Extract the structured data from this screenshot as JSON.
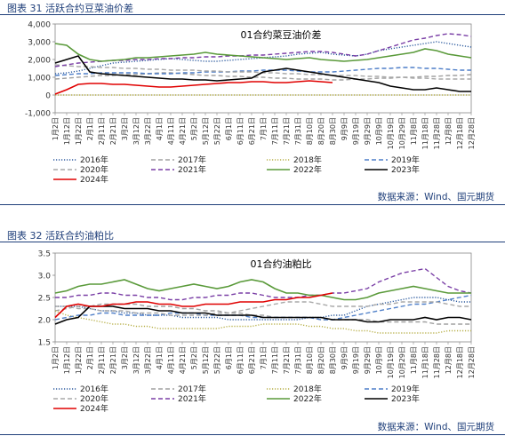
{
  "header1": "图表 31 活跃合约豆菜油价差",
  "header2": "图表 32 活跃合约油粕比",
  "source1": "数据来源：Wind、国元期货",
  "source2": "数据来源：Wind、国元期货",
  "legend_colors": {
    "2016年": "#2e5c9f",
    "2017年": "#a0a0a0",
    "2018年": "#b8b04a",
    "2019年": "#4f7fc8",
    "2020年": "#a8a8a8",
    "2021年": "#7a3fa6",
    "2022年": "#5a9a3a",
    "2023年": "#000000",
    "2024年": "#e00000"
  },
  "chart_data": [
    {
      "type": "line",
      "title": "01合约菜豆油价差",
      "x_ticks": [
        "1月2日",
        "1月12日",
        "1月22日",
        "2月1日",
        "2月11日",
        "2月21日",
        "3月2日",
        "3月12日",
        "3月22日",
        "4月1日",
        "4月11日",
        "4月21日",
        "5月2日",
        "5月12日",
        "5月22日",
        "6月1日",
        "6月11日",
        "6月21日",
        "7月1日",
        "7月11日",
        "7月21日",
        "7月31日",
        "8月10日",
        "8月20日",
        "8月30日",
        "9月9日",
        "9月19日",
        "9月29日",
        "10月9日",
        "10月19日",
        "10月29日",
        "11月8日",
        "11月18日",
        "11月28日",
        "12月8日",
        "12月18日",
        "12月28日"
      ],
      "y_ticks": [
        "-1,000",
        "0",
        "1,000",
        "2,000",
        "3,000",
        "4,000"
      ],
      "ylim": [
        -1000,
        4000
      ],
      "grid": false,
      "legend_position": "bottom",
      "series": [
        {
          "name": "2016年",
          "style": "dotted",
          "values": [
            1200,
            1250,
            1350,
            1500,
            1650,
            1800,
            1850,
            1900,
            1950,
            2000,
            2050,
            2000,
            1950,
            1900,
            1900,
            1950,
            2000,
            2050,
            2100,
            2150,
            2200,
            2300,
            2350,
            2400,
            2300,
            2250,
            2200,
            2300,
            2500,
            2600,
            2700,
            2800,
            2900,
            3000,
            2900,
            2800,
            2700
          ]
        },
        {
          "name": "2017年",
          "style": "dashed",
          "values": [
            900,
            950,
            1000,
            1050,
            1100,
            1100,
            1150,
            1150,
            1200,
            1250,
            1250,
            1200,
            1150,
            1100,
            1100,
            1050,
            1050,
            1000,
            1000,
            950,
            950,
            900,
            900,
            900,
            850,
            850,
            900,
            900,
            950,
            950,
            1000,
            1000,
            1050,
            1050,
            1100,
            1100,
            1150
          ]
        },
        {
          "name": "2018年",
          "style": "dotted",
          "values": [
            0,
            0,
            0,
            0,
            0,
            0,
            0,
            0,
            0,
            0,
            0,
            0,
            0,
            0,
            0,
            0,
            0,
            0,
            0,
            0,
            0,
            0,
            0,
            0,
            0,
            0,
            0,
            0,
            0,
            0,
            0,
            0,
            0,
            0,
            0,
            0,
            0
          ]
        },
        {
          "name": "2019年",
          "style": "dashed",
          "values": [
            1100,
            1150,
            1200,
            1200,
            1250,
            1250,
            1250,
            1250,
            1200,
            1200,
            1200,
            1250,
            1250,
            1300,
            1300,
            1300,
            1350,
            1350,
            1400,
            1400,
            1400,
            1350,
            1300,
            1300,
            1300,
            1350,
            1400,
            1450,
            1500,
            1500,
            1550,
            1550,
            1500,
            1500,
            1450,
            1400,
            1400
          ]
        },
        {
          "name": "2020年",
          "style": "dashed",
          "values": [
            1700,
            1650,
            1600,
            1600,
            1550,
            1550,
            1500,
            1500,
            1450,
            1450,
            1400,
            1400,
            1400,
            1350,
            1350,
            1300,
            1300,
            1300,
            1250,
            1250,
            1200,
            1200,
            1150,
            1150,
            1100,
            1100,
            1100,
            1050,
            1050,
            1000,
            1000,
            950,
            950,
            900,
            900,
            900,
            900
          ]
        },
        {
          "name": "2021年",
          "style": "dashed",
          "values": [
            1600,
            1700,
            1800,
            1850,
            1900,
            1950,
            1950,
            2000,
            2000,
            2050,
            2050,
            2100,
            2100,
            2150,
            2150,
            2200,
            2200,
            2250,
            2250,
            2300,
            2350,
            2400,
            2450,
            2450,
            2400,
            2300,
            2200,
            2300,
            2500,
            2700,
            2900,
            3100,
            3200,
            3350,
            3450,
            3400,
            3300
          ]
        },
        {
          "name": "2022年",
          "style": "solid",
          "values": [
            2900,
            2800,
            2300,
            2000,
            1900,
            1950,
            2000,
            2100,
            2100,
            2150,
            2200,
            2250,
            2300,
            2400,
            2300,
            2250,
            2200,
            2150,
            2100,
            2050,
            2000,
            2050,
            2100,
            2000,
            1950,
            1900,
            1950,
            2000,
            2100,
            2200,
            2300,
            2400,
            2600,
            2500,
            2300,
            2200,
            2100
          ]
        },
        {
          "name": "2023年",
          "style": "solid",
          "values": [
            1800,
            2000,
            2200,
            1300,
            1200,
            1150,
            1100,
            1050,
            1000,
            950,
            900,
            900,
            850,
            850,
            800,
            850,
            900,
            950,
            1300,
            1400,
            1500,
            1400,
            1300,
            1200,
            1100,
            1000,
            900,
            800,
            700,
            500,
            400,
            300,
            300,
            400,
            300,
            200,
            200
          ]
        },
        {
          "name": "2024年",
          "style": "solid",
          "values": [
            50,
            300,
            600,
            650,
            650,
            600,
            600,
            550,
            500,
            450,
            450,
            500,
            550,
            600,
            650,
            700,
            700,
            750,
            750,
            700,
            700,
            750,
            800,
            750,
            700,
            null,
            null,
            null,
            null,
            null,
            null,
            null,
            null,
            null,
            null,
            null,
            null
          ]
        }
      ]
    },
    {
      "type": "line",
      "title": "01合约油粕比",
      "x_ticks": [
        "1月2日",
        "1月12日",
        "1月22日",
        "2月1日",
        "2月11日",
        "2月21日",
        "3月2日",
        "3月12日",
        "3月22日",
        "4月1日",
        "4月11日",
        "4月21日",
        "5月2日",
        "5月12日",
        "5月22日",
        "6月1日",
        "6月11日",
        "6月21日",
        "7月1日",
        "7月11日",
        "7月21日",
        "7月31日",
        "8月10日",
        "8月20日",
        "8月30日",
        "9月9日",
        "9月19日",
        "9月29日",
        "10月9日",
        "10月19日",
        "10月29日",
        "11月8日",
        "11月18日",
        "11月28日",
        "12月8日",
        "12月18日",
        "12月28日"
      ],
      "y_ticks": [
        "1.5",
        "2.0",
        "2.5",
        "3.0",
        "3.5"
      ],
      "ylim": [
        1.5,
        3.5
      ],
      "grid": false,
      "legend_position": "bottom",
      "series": [
        {
          "name": "2016年",
          "style": "dotted",
          "values": [
            2.3,
            2.3,
            2.3,
            2.25,
            2.2,
            2.2,
            2.15,
            2.15,
            2.1,
            2.1,
            2.1,
            2.05,
            2.05,
            2.05,
            2.05,
            2.0,
            2.0,
            2.0,
            2.0,
            2.0,
            2.0,
            2.0,
            2.05,
            2.05,
            2.1,
            2.1,
            2.2,
            2.3,
            2.35,
            2.4,
            2.45,
            2.5,
            2.5,
            2.5,
            2.45,
            2.4,
            2.4
          ]
        },
        {
          "name": "2017年",
          "style": "dashed",
          "values": [
            2.2,
            2.25,
            2.3,
            2.3,
            2.35,
            2.35,
            2.35,
            2.35,
            2.3,
            2.3,
            2.3,
            2.25,
            2.25,
            2.2,
            2.2,
            2.15,
            2.15,
            2.1,
            2.1,
            2.05,
            2.05,
            2.05,
            2.05,
            2.0,
            2.0,
            2.0,
            2.0,
            2.0,
            1.95,
            1.95,
            1.95,
            1.95,
            1.95,
            1.9,
            1.9,
            1.9,
            1.9
          ]
        },
        {
          "name": "2018年",
          "style": "dotted",
          "values": [
            2.2,
            2.1,
            2.05,
            2.0,
            1.95,
            1.9,
            1.9,
            1.85,
            1.85,
            1.8,
            1.8,
            1.8,
            1.8,
            1.8,
            1.8,
            1.85,
            1.85,
            1.85,
            1.9,
            1.9,
            1.9,
            1.9,
            1.85,
            1.85,
            1.8,
            1.8,
            1.75,
            1.75,
            1.7,
            1.7,
            1.7,
            1.7,
            1.7,
            1.7,
            1.75,
            1.75,
            1.75
          ]
        },
        {
          "name": "2019年",
          "style": "dashed",
          "values": [
            2.0,
            2.05,
            2.1,
            2.1,
            2.15,
            2.15,
            2.1,
            2.1,
            2.1,
            2.1,
            2.15,
            2.15,
            2.15,
            2.1,
            2.1,
            2.1,
            2.1,
            2.05,
            2.05,
            2.05,
            2.05,
            2.05,
            2.05,
            2.0,
            2.0,
            2.05,
            2.1,
            2.15,
            2.2,
            2.25,
            2.3,
            2.35,
            2.35,
            2.4,
            2.45,
            2.5,
            2.55
          ]
        },
        {
          "name": "2020年",
          "style": "dashed",
          "values": [
            2.3,
            2.3,
            2.25,
            2.25,
            2.2,
            2.2,
            2.2,
            2.15,
            2.15,
            2.15,
            2.1,
            2.1,
            2.1,
            2.1,
            2.15,
            2.15,
            2.2,
            2.25,
            2.3,
            2.35,
            2.4,
            2.4,
            2.4,
            2.35,
            2.3,
            2.3,
            2.3,
            2.3,
            2.35,
            2.35,
            2.4,
            2.4,
            2.4,
            2.4,
            2.35,
            2.3,
            2.3
          ]
        },
        {
          "name": "2021年",
          "style": "dashed",
          "values": [
            2.5,
            2.5,
            2.55,
            2.55,
            2.6,
            2.6,
            2.55,
            2.55,
            2.5,
            2.5,
            2.45,
            2.45,
            2.5,
            2.5,
            2.55,
            2.55,
            2.6,
            2.6,
            2.55,
            2.5,
            2.5,
            2.5,
            2.55,
            2.55,
            2.6,
            2.6,
            2.65,
            2.7,
            2.85,
            2.95,
            3.05,
            3.1,
            3.15,
            2.95,
            2.75,
            2.65,
            2.6
          ]
        },
        {
          "name": "2022年",
          "style": "solid",
          "values": [
            2.6,
            2.65,
            2.75,
            2.8,
            2.8,
            2.85,
            2.9,
            2.8,
            2.7,
            2.65,
            2.7,
            2.75,
            2.8,
            2.75,
            2.7,
            2.75,
            2.85,
            2.9,
            2.85,
            2.7,
            2.6,
            2.6,
            2.55,
            2.55,
            2.5,
            2.45,
            2.45,
            2.5,
            2.6,
            2.65,
            2.7,
            2.75,
            2.7,
            2.65,
            2.6,
            2.6,
            2.6
          ]
        },
        {
          "name": "2023年",
          "style": "solid",
          "values": [
            1.9,
            2.0,
            2.05,
            2.3,
            2.3,
            2.3,
            2.25,
            2.25,
            2.25,
            2.2,
            2.2,
            2.15,
            2.15,
            2.15,
            2.1,
            2.1,
            2.1,
            2.1,
            2.05,
            2.05,
            2.05,
            2.05,
            2.05,
            2.05,
            2.0,
            2.0,
            2.0,
            1.95,
            1.95,
            2.0,
            2.0,
            2.0,
            2.05,
            2.0,
            2.05,
            2.05,
            2.0
          ]
        },
        {
          "name": "2024年",
          "style": "solid",
          "values": [
            2.05,
            2.3,
            2.35,
            2.3,
            2.3,
            2.35,
            2.35,
            2.4,
            2.4,
            2.35,
            2.35,
            2.3,
            2.3,
            2.35,
            2.35,
            2.35,
            2.4,
            2.4,
            2.4,
            2.45,
            2.45,
            2.5,
            2.5,
            2.55,
            2.6,
            null,
            null,
            null,
            null,
            null,
            null,
            null,
            null,
            null,
            null,
            null,
            null
          ]
        }
      ]
    }
  ]
}
